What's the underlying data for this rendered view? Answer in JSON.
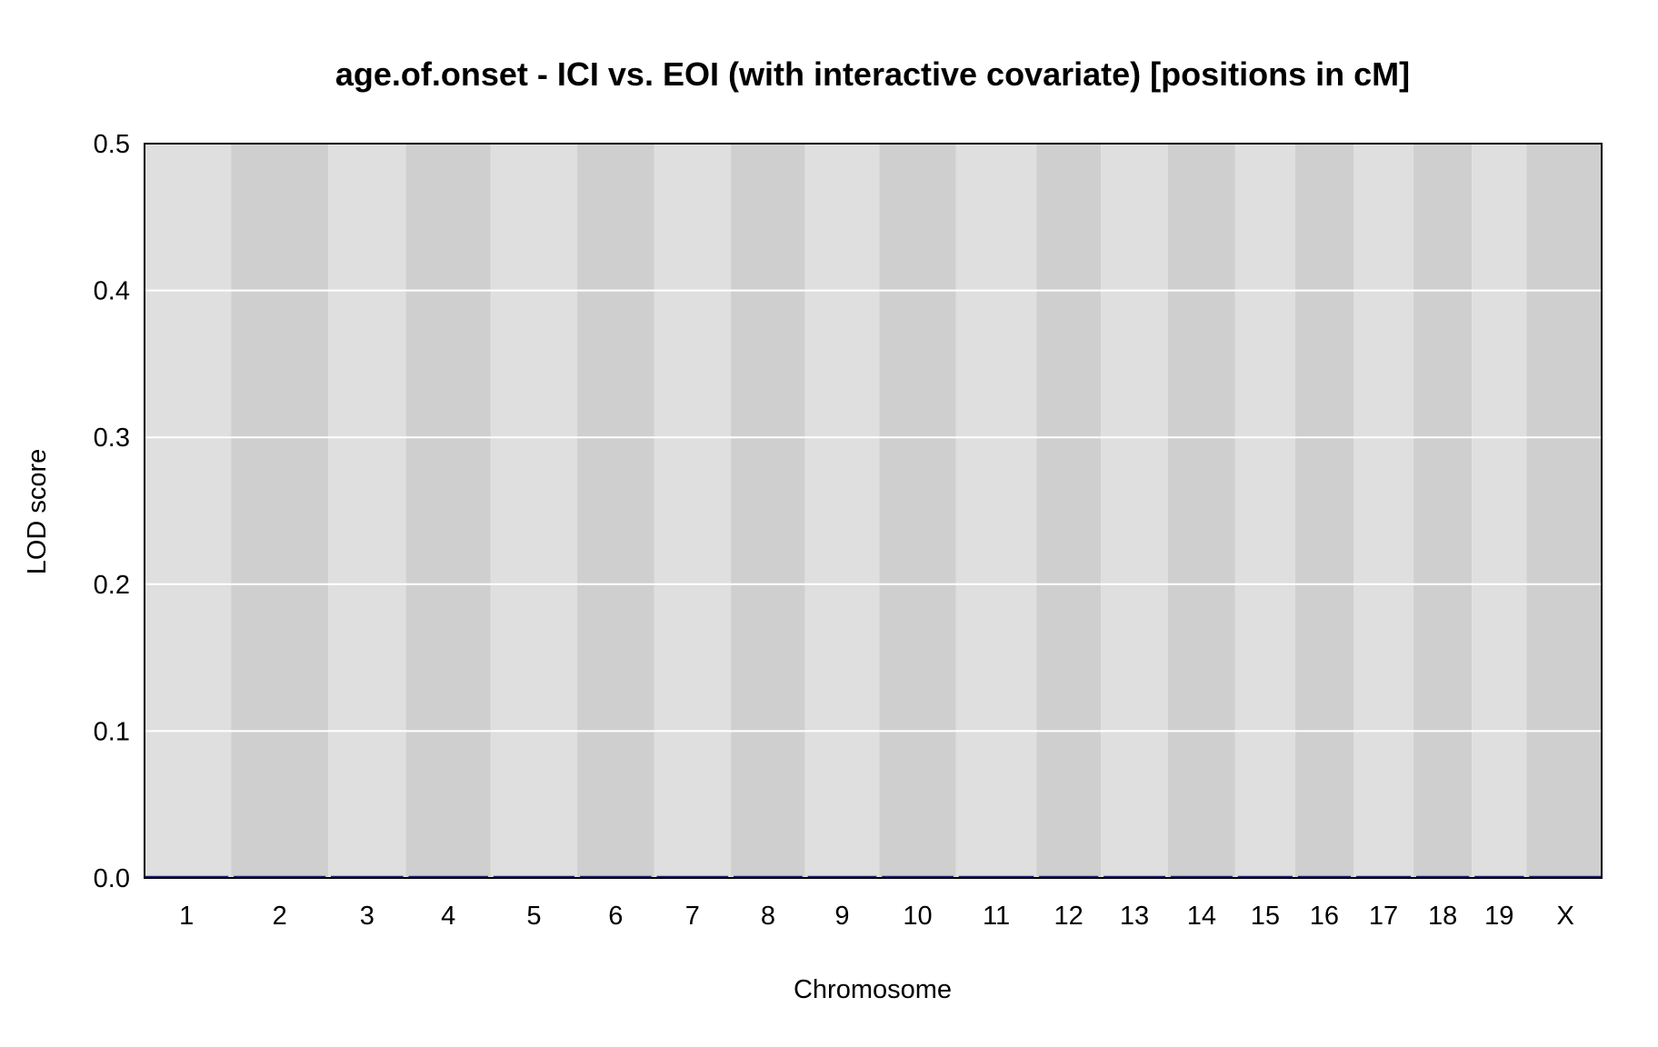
{
  "chart_data": {
    "type": "line",
    "title": "age.of.onset - ICI vs. EOI (with interactive covariate) [positions in cM]",
    "xlabel": "Chromosome",
    "ylabel": "LOD score",
    "ylim": [
      0,
      0.5
    ],
    "yticks": [
      "0.0",
      "0.1",
      "0.2",
      "0.3",
      "0.4",
      "0.5"
    ],
    "grid": true,
    "legend": "none",
    "chromosomes": [
      {
        "label": "1",
        "length_cM": 95
      },
      {
        "label": "2",
        "length_cM": 104
      },
      {
        "label": "3",
        "length_cM": 82
      },
      {
        "label": "4",
        "length_cM": 90
      },
      {
        "label": "5",
        "length_cM": 92
      },
      {
        "label": "6",
        "length_cM": 81
      },
      {
        "label": "7",
        "length_cM": 81
      },
      {
        "label": "8",
        "length_cM": 78
      },
      {
        "label": "9",
        "length_cM": 78
      },
      {
        "label": "10",
        "length_cM": 81
      },
      {
        "label": "11",
        "length_cM": 85
      },
      {
        "label": "12",
        "length_cM": 67
      },
      {
        "label": "13",
        "length_cM": 70
      },
      {
        "label": "14",
        "length_cM": 70
      },
      {
        "label": "15",
        "length_cM": 62
      },
      {
        "label": "16",
        "length_cM": 60
      },
      {
        "label": "17",
        "length_cM": 62
      },
      {
        "label": "18",
        "length_cM": 60
      },
      {
        "label": "19",
        "length_cM": 56
      },
      {
        "label": "X",
        "length_cM": 82
      }
    ],
    "series": [
      {
        "color": "#1a1a6e",
        "lod_values": [
          0,
          0,
          0,
          0,
          0,
          0,
          0,
          0,
          0,
          0,
          0,
          0,
          0,
          0,
          0,
          0,
          0,
          0,
          0,
          0
        ]
      }
    ],
    "colors": {
      "band_light": "#dfdfdf",
      "band_dark": "#cfcfcf",
      "gridline": "#ffffff",
      "frame": "#000000"
    }
  }
}
